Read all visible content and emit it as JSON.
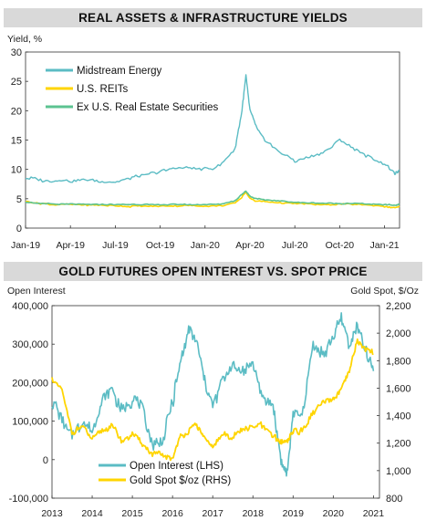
{
  "chart_data": [
    {
      "type": "line",
      "title": "REAL ASSETS & INFRASTRUCTURE YIELDS",
      "ylabel": "Yield, %",
      "ylim": [
        0,
        30
      ],
      "yticks": [
        0,
        5,
        10,
        15,
        20,
        25,
        30
      ],
      "xticks": [
        "Jan-19",
        "Apr-19",
        "Jul-19",
        "Oct-19",
        "Jan-20",
        "Apr-20",
        "Jul-20",
        "Oct-20",
        "Jan-21"
      ],
      "legend_position": "top-left",
      "grid": false,
      "series": [
        {
          "name": "Midstream Energy",
          "color": "#5bbcc4",
          "x": [
            "2019-01",
            "2019-02",
            "2019-03",
            "2019-04",
            "2019-05",
            "2019-06",
            "2019-07",
            "2019-08",
            "2019-09",
            "2019-10",
            "2019-11",
            "2019-12",
            "2020-01",
            "2020-02",
            "2020-03",
            "2020-03-15",
            "2020-03-23",
            "2020-04",
            "2020-04-15",
            "2020-05",
            "2020-06",
            "2020-07",
            "2020-08",
            "2020-09",
            "2020-10",
            "2020-11",
            "2020-12",
            "2021-01",
            "2021-01-20",
            "2021-02"
          ],
          "values": [
            8.6,
            8.2,
            8.1,
            8.1,
            8.2,
            8.0,
            7.9,
            8.5,
            9.0,
            9.6,
            10.2,
            10.3,
            10.0,
            10.6,
            13.5,
            20.0,
            26.0,
            20.0,
            17.0,
            15.0,
            13.0,
            11.5,
            12.0,
            13.0,
            15.0,
            13.5,
            12.0,
            11.0,
            9.3,
            9.8
          ]
        },
        {
          "name": "U.S. REITs",
          "color": "#ffd500",
          "x": [
            "2019-01",
            "2019-02",
            "2019-03",
            "2019-04",
            "2019-05",
            "2019-06",
            "2019-07",
            "2019-08",
            "2019-09",
            "2019-10",
            "2019-11",
            "2019-12",
            "2020-01",
            "2020-02",
            "2020-03",
            "2020-03-15",
            "2020-03-23",
            "2020-04",
            "2020-04-15",
            "2020-05",
            "2020-06",
            "2020-07",
            "2020-08",
            "2020-09",
            "2020-10",
            "2020-11",
            "2020-12",
            "2021-01",
            "2021-01-20",
            "2021-02"
          ],
          "values": [
            4.6,
            4.2,
            4.0,
            4.0,
            3.9,
            3.9,
            3.8,
            3.7,
            3.7,
            3.7,
            3.8,
            3.8,
            3.7,
            3.8,
            4.2,
            5.3,
            6.2,
            5.0,
            4.6,
            4.5,
            4.3,
            4.2,
            4.1,
            4.0,
            4.1,
            4.0,
            3.9,
            3.7,
            3.5,
            3.6
          ]
        },
        {
          "name": "Ex U.S. Real Estate Securities",
          "color": "#5cc391",
          "x": [
            "2019-01",
            "2019-02",
            "2019-03",
            "2019-04",
            "2019-05",
            "2019-06",
            "2019-07",
            "2019-08",
            "2019-09",
            "2019-10",
            "2019-11",
            "2019-12",
            "2020-01",
            "2020-02",
            "2020-03",
            "2020-03-15",
            "2020-03-23",
            "2020-04",
            "2020-04-15",
            "2020-05",
            "2020-06",
            "2020-07",
            "2020-08",
            "2020-09",
            "2020-10",
            "2020-11",
            "2020-12",
            "2021-01",
            "2021-01-20",
            "2021-02"
          ],
          "values": [
            4.4,
            4.2,
            4.1,
            4.1,
            4.0,
            4.0,
            4.0,
            4.0,
            4.0,
            4.0,
            4.0,
            4.0,
            4.0,
            4.1,
            4.6,
            5.8,
            6.3,
            5.4,
            5.0,
            4.8,
            4.6,
            4.4,
            4.3,
            4.2,
            4.2,
            4.2,
            4.1,
            4.0,
            3.9,
            4.0
          ]
        }
      ]
    },
    {
      "type": "line",
      "title": "GOLD FUTURES OPEN INTEREST VS. SPOT PRICE",
      "ylabel": "Open Interest",
      "ylabel_right": "Gold Spot, $/Oz",
      "ylim": [
        -100000,
        400000
      ],
      "ylim_right": [
        800,
        2200
      ],
      "yticks": [
        -100000,
        0,
        100000,
        200000,
        300000,
        400000
      ],
      "ytick_labels": [
        "-100,000",
        "0",
        "100,000",
        "200,000",
        "300,000",
        "400,000"
      ],
      "yticks_right": [
        800,
        1000,
        1200,
        1400,
        1600,
        1800,
        2000,
        2200
      ],
      "ytick_labels_right": [
        "800",
        "1,000",
        "1,200",
        "1,400",
        "1,600",
        "1,800",
        "2,000",
        "2,200"
      ],
      "xticks": [
        "2013",
        "2014",
        "2015",
        "2016",
        "2017",
        "2018",
        "2019",
        "2020",
        "2021"
      ],
      "legend_position": "bottom-center",
      "grid": false,
      "series": [
        {
          "name": "Open Interest (LHS)",
          "axis": "left",
          "color": "#5bbcc4",
          "x": [
            2013.0,
            2013.25,
            2013.5,
            2013.75,
            2014.0,
            2014.25,
            2014.5,
            2014.75,
            2015.0,
            2015.25,
            2015.5,
            2015.75,
            2016.0,
            2016.2,
            2016.4,
            2016.6,
            2016.8,
            2017.0,
            2017.25,
            2017.5,
            2017.75,
            2018.0,
            2018.25,
            2018.5,
            2018.7,
            2018.85,
            2019.0,
            2019.25,
            2019.5,
            2019.75,
            2020.0,
            2020.2,
            2020.4,
            2020.6,
            2020.8,
            2021.0
          ],
          "values": [
            150000,
            110000,
            60000,
            100000,
            80000,
            150000,
            180000,
            120000,
            160000,
            130000,
            40000,
            50000,
            150000,
            250000,
            340000,
            300000,
            200000,
            140000,
            210000,
            240000,
            230000,
            250000,
            160000,
            150000,
            0,
            -40000,
            120000,
            120000,
            300000,
            270000,
            320000,
            370000,
            300000,
            340000,
            280000,
            230000
          ]
        },
        {
          "name": "Gold Spot $/oz (RHS)",
          "axis": "right",
          "color": "#ffd500",
          "x": [
            2013.0,
            2013.25,
            2013.5,
            2013.75,
            2014.0,
            2014.25,
            2014.5,
            2014.75,
            2015.0,
            2015.25,
            2015.5,
            2015.75,
            2016.0,
            2016.2,
            2016.4,
            2016.6,
            2016.8,
            2017.0,
            2017.25,
            2017.5,
            2017.75,
            2018.0,
            2018.25,
            2018.5,
            2018.7,
            2018.85,
            2019.0,
            2019.25,
            2019.5,
            2019.75,
            2020.0,
            2020.2,
            2020.4,
            2020.6,
            2020.8,
            2021.0
          ],
          "values": [
            1670,
            1580,
            1280,
            1330,
            1230,
            1300,
            1320,
            1220,
            1260,
            1200,
            1120,
            1110,
            1090,
            1250,
            1280,
            1340,
            1230,
            1170,
            1260,
            1250,
            1290,
            1320,
            1330,
            1250,
            1200,
            1220,
            1290,
            1290,
            1420,
            1490,
            1520,
            1600,
            1720,
            1950,
            1880,
            1850
          ]
        }
      ]
    }
  ]
}
